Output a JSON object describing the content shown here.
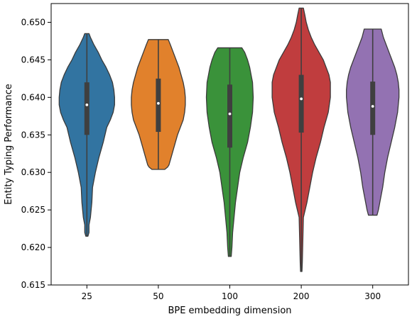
{
  "chart_data": {
    "type": "violin",
    "xlabel": "BPE embedding dimension",
    "ylabel": "Entity Typing Performance",
    "ylim": [
      0.615,
      0.6525
    ],
    "yticks": [
      "0.615",
      "0.620",
      "0.625",
      "0.630",
      "0.635",
      "0.640",
      "0.645",
      "0.650"
    ],
    "categories": [
      "25",
      "50",
      "100",
      "200",
      "300"
    ],
    "grid": false,
    "legend": "none",
    "violins": [
      {
        "category": "25",
        "color": "#3274a1",
        "min": 0.6215,
        "q1": 0.635,
        "median": 0.639,
        "q3": 0.642,
        "max": 0.6485,
        "profile": [
          [
            0.6215,
            1.5
          ],
          [
            0.622,
            3
          ],
          [
            0.623,
            3
          ],
          [
            0.624,
            5
          ],
          [
            0.626,
            7
          ],
          [
            0.628,
            8
          ],
          [
            0.63,
            12
          ],
          [
            0.632,
            17
          ],
          [
            0.634,
            23
          ],
          [
            0.636,
            28
          ],
          [
            0.637,
            33
          ],
          [
            0.638,
            37
          ],
          [
            0.639,
            39
          ],
          [
            0.64,
            39
          ],
          [
            0.641,
            38
          ],
          [
            0.642,
            36
          ],
          [
            0.643,
            32
          ],
          [
            0.644,
            27
          ],
          [
            0.645,
            21
          ],
          [
            0.646,
            16
          ],
          [
            0.647,
            10
          ],
          [
            0.648,
            5
          ],
          [
            0.6485,
            3
          ]
        ]
      },
      {
        "category": "50",
        "color": "#e1812c",
        "min": 0.6304,
        "q1": 0.6354,
        "median": 0.6392,
        "q3": 0.6425,
        "max": 0.6477,
        "profile": [
          [
            0.6304,
            9
          ],
          [
            0.6307,
            13
          ],
          [
            0.631,
            15
          ],
          [
            0.632,
            18
          ],
          [
            0.633,
            21
          ],
          [
            0.634,
            24
          ],
          [
            0.635,
            27
          ],
          [
            0.636,
            31
          ],
          [
            0.637,
            35
          ],
          [
            0.638,
            37
          ],
          [
            0.639,
            38
          ],
          [
            0.64,
            38
          ],
          [
            0.641,
            37
          ],
          [
            0.642,
            35
          ],
          [
            0.643,
            32
          ],
          [
            0.644,
            29
          ],
          [
            0.645,
            25
          ],
          [
            0.646,
            21
          ],
          [
            0.647,
            17
          ],
          [
            0.6477,
            14
          ]
        ]
      },
      {
        "category": "100",
        "color": "#3a923a",
        "min": 0.6188,
        "q1": 0.6333,
        "median": 0.6378,
        "q3": 0.6417,
        "max": 0.6466,
        "profile": [
          [
            0.6188,
            2
          ],
          [
            0.62,
            3
          ],
          [
            0.622,
            4
          ],
          [
            0.624,
            6
          ],
          [
            0.626,
            8
          ],
          [
            0.628,
            11
          ],
          [
            0.63,
            14
          ],
          [
            0.632,
            19
          ],
          [
            0.634,
            25
          ],
          [
            0.636,
            29
          ],
          [
            0.638,
            32
          ],
          [
            0.64,
            33
          ],
          [
            0.642,
            32
          ],
          [
            0.643,
            30
          ],
          [
            0.644,
            28
          ],
          [
            0.645,
            25
          ],
          [
            0.646,
            21
          ],
          [
            0.6466,
            17
          ]
        ]
      },
      {
        "category": "200",
        "color": "#c03d3e",
        "min": 0.6168,
        "q1": 0.6353,
        "median": 0.6398,
        "q3": 0.643,
        "max": 0.6519,
        "profile": [
          [
            0.6168,
            1
          ],
          [
            0.618,
            1.5
          ],
          [
            0.62,
            2
          ],
          [
            0.622,
            2.5
          ],
          [
            0.624,
            3
          ],
          [
            0.626,
            8
          ],
          [
            0.628,
            12
          ],
          [
            0.63,
            16
          ],
          [
            0.632,
            21
          ],
          [
            0.634,
            27
          ],
          [
            0.636,
            32
          ],
          [
            0.638,
            38
          ],
          [
            0.64,
            41
          ],
          [
            0.642,
            41
          ],
          [
            0.643,
            39
          ],
          [
            0.644,
            35
          ],
          [
            0.645,
            31
          ],
          [
            0.646,
            25
          ],
          [
            0.647,
            19
          ],
          [
            0.648,
            14
          ],
          [
            0.649,
            10
          ],
          [
            0.65,
            7
          ],
          [
            0.651,
            5
          ],
          [
            0.6519,
            3
          ]
        ]
      },
      {
        "category": "300",
        "color": "#9372b2",
        "min": 0.6243,
        "q1": 0.635,
        "median": 0.6388,
        "q3": 0.6421,
        "max": 0.6491,
        "profile": [
          [
            0.6243,
            6
          ],
          [
            0.625,
            8
          ],
          [
            0.626,
            10
          ],
          [
            0.628,
            14
          ],
          [
            0.63,
            17
          ],
          [
            0.632,
            21
          ],
          [
            0.634,
            26
          ],
          [
            0.636,
            31
          ],
          [
            0.638,
            35
          ],
          [
            0.64,
            37
          ],
          [
            0.641,
            37
          ],
          [
            0.642,
            36
          ],
          [
            0.643,
            34
          ],
          [
            0.644,
            31
          ],
          [
            0.645,
            27
          ],
          [
            0.646,
            23
          ],
          [
            0.647,
            19
          ],
          [
            0.648,
            15
          ],
          [
            0.6491,
            12
          ]
        ]
      }
    ]
  }
}
